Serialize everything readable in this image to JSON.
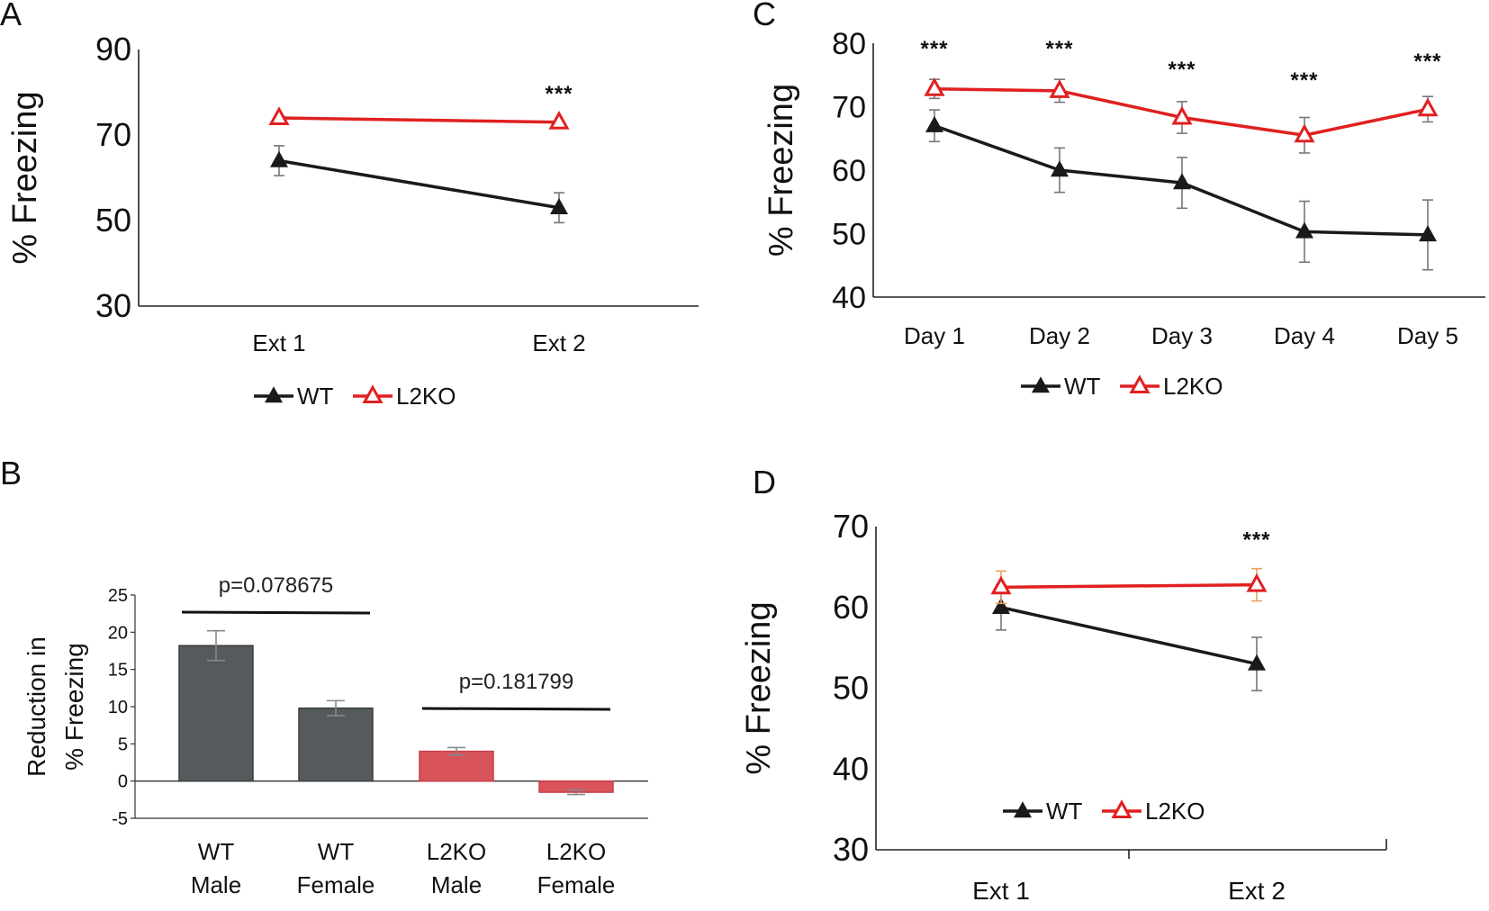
{
  "colors": {
    "wt": "#1a1a1a",
    "l2ko": "#e02020",
    "wt_bar": "#555a5c",
    "l2ko_bar": "#d9535a",
    "error_orange": "#e8a060",
    "grey_err": "#777777"
  },
  "chart_data": [
    {
      "panel": "A",
      "type": "line",
      "ylabel": "% Freezing",
      "ylim": [
        30,
        90
      ],
      "yticks": [
        "30",
        "50",
        "70",
        "90"
      ],
      "categories": [
        "Ext 1",
        "Ext 2"
      ],
      "series": [
        {
          "name": "WT",
          "values": [
            64,
            53
          ],
          "errors": [
            3.5,
            3.5
          ]
        },
        {
          "name": "L2KO",
          "values": [
            74,
            73
          ],
          "errors": [
            0,
            0
          ]
        }
      ],
      "significance": [
        "",
        "***"
      ],
      "legend": [
        "WT",
        "L2KO"
      ]
    },
    {
      "panel": "C",
      "type": "line",
      "ylabel": "% Freezing",
      "ylim": [
        40,
        80
      ],
      "yticks": [
        "40",
        "50",
        "60",
        "70",
        "80"
      ],
      "categories": [
        "Day 1",
        "Day 2",
        "Day 3",
        "Day 4",
        "Day 5"
      ],
      "series": [
        {
          "name": "WT",
          "values": [
            67,
            60,
            58,
            50.3,
            49.8
          ],
          "errors": [
            2.5,
            3.5,
            4,
            4.8,
            5.5
          ]
        },
        {
          "name": "L2KO",
          "values": [
            72.8,
            72.5,
            68.3,
            65.5,
            69.6
          ],
          "errors": [
            1.5,
            1.8,
            2.5,
            2.8,
            2
          ]
        }
      ],
      "significance": [
        "***",
        "***",
        "***",
        "***",
        "***"
      ],
      "legend": [
        "WT",
        "L2KO"
      ]
    },
    {
      "panel": "B",
      "type": "bar",
      "ylabel_line1": "Reduction in",
      "ylabel_line2": "% Freezing",
      "ylim": [
        -5,
        25
      ],
      "yticks": [
        "-5",
        "0",
        "5",
        "10",
        "15",
        "20",
        "25"
      ],
      "categories": [
        {
          "line1": "WT",
          "line2": "Male"
        },
        {
          "line1": "WT",
          "line2": "Female"
        },
        {
          "line1": "L2KO",
          "line2": "Male"
        },
        {
          "line1": "L2KO",
          "line2": "Female"
        }
      ],
      "values": [
        18.2,
        9.8,
        4,
        -1.5
      ],
      "errors": [
        2,
        1,
        0.5,
        0.3
      ],
      "comparisons": [
        {
          "label": "p=0.078675",
          "from": 0,
          "to": 1
        },
        {
          "label": "p=0.181799",
          "from": 2,
          "to": 3
        }
      ]
    },
    {
      "panel": "D",
      "type": "line",
      "ylabel": "% Freezing",
      "ylim": [
        30,
        70
      ],
      "yticks": [
        "30",
        "40",
        "50",
        "60",
        "70"
      ],
      "categories": [
        "Ext 1",
        "Ext 2"
      ],
      "series": [
        {
          "name": "WT",
          "values": [
            60,
            53
          ],
          "errors": [
            2.8,
            3.3
          ]
        },
        {
          "name": "L2KO",
          "values": [
            62.5,
            62.8
          ],
          "errors": [
            2,
            2
          ]
        }
      ],
      "significance": [
        "",
        "***"
      ],
      "legend": [
        "WT",
        "L2KO"
      ]
    }
  ]
}
